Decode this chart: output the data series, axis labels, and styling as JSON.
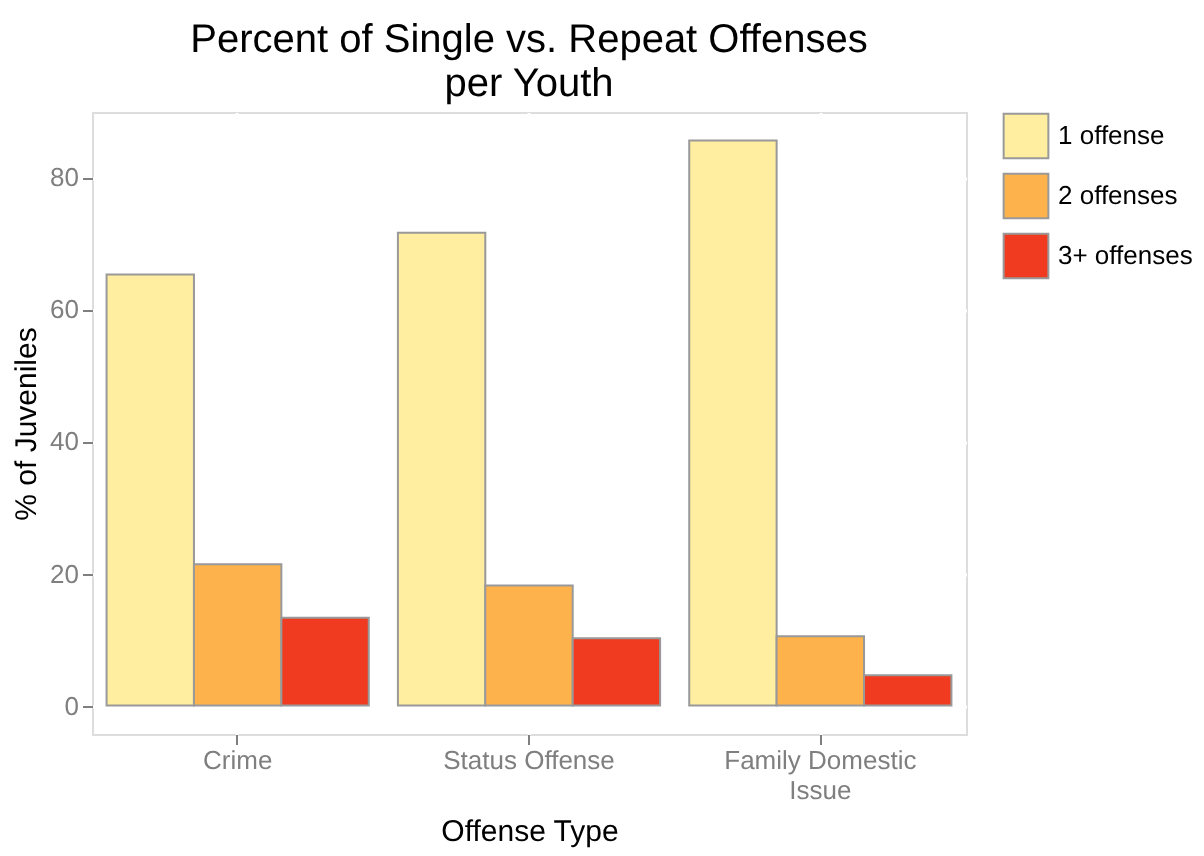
{
  "chart_data": {
    "type": "bar",
    "title": "Percent of Single vs. Repeat Offenses per Youth",
    "xlabel": "Offense Type",
    "ylabel": "% of Juveniles",
    "categories": [
      "Crime",
      "Status Offense",
      "Family Domestic Issue"
    ],
    "series": [
      {
        "name": "1 offense",
        "color": "#ffeda0",
        "values": [
          65.3,
          71.6,
          85.6
        ]
      },
      {
        "name": "2 offenses",
        "color": "#feb24c",
        "values": [
          21.4,
          18.2,
          10.5
        ]
      },
      {
        "name": "3+ offenses",
        "color": "#f03b20",
        "values": [
          13.3,
          10.2,
          4.6
        ]
      }
    ],
    "ylim": [
      -4.3,
      89.9
    ],
    "yticks": [
      0,
      20,
      40,
      60,
      80
    ],
    "grid": true,
    "legend": "right"
  }
}
